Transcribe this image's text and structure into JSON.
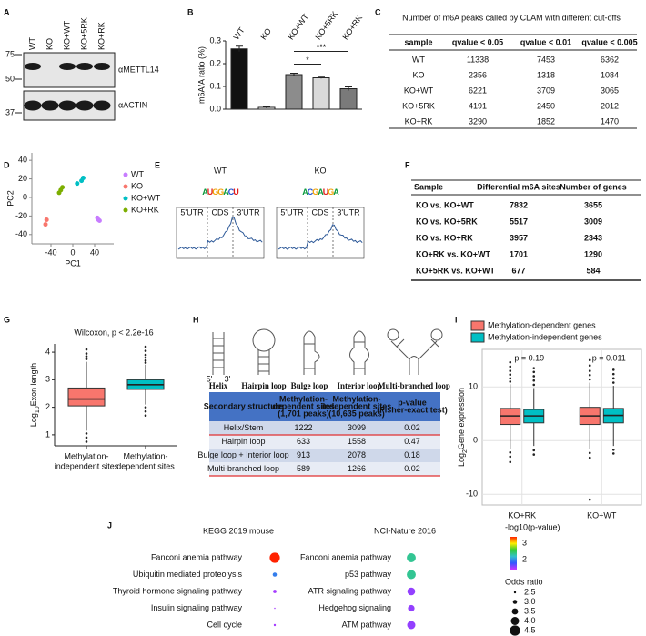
{
  "panel_letters": [
    "A",
    "B",
    "C",
    "D",
    "E",
    "F",
    "G",
    "H",
    "I",
    "J"
  ],
  "blot": {
    "lanes": [
      "WT",
      "KO",
      "KO+WT",
      "KO+5RK",
      "KO+RK"
    ],
    "markers": [
      75,
      50,
      37
    ],
    "antibodies": [
      "αMETTL14",
      "αACTIN"
    ]
  },
  "chart_data": [
    {
      "type": "bar",
      "ylabel": "m6A/A ratio (%)",
      "categories": [
        "WT",
        "KO",
        "KO+WT",
        "KO+5RK",
        "KO+RK"
      ],
      "values": [
        0.265,
        0.008,
        0.152,
        0.138,
        0.09
      ],
      "errors": [
        0.012,
        0.004,
        0.006,
        0.003,
        0.008
      ],
      "colors": [
        "#111111",
        "#ffffff",
        "#8c8c8c",
        "#d9d9d9",
        "#7a7a7a"
      ],
      "ylim": [
        0,
        0.3
      ],
      "yticks": [
        {
          "value": 0,
          "label": "0.0"
        },
        {
          "value": 0.1,
          "label": "0.1"
        },
        {
          "value": 0.2,
          "label": "0.2"
        },
        {
          "value": 0.3,
          "label": "0.3"
        }
      ],
      "significance": [
        {
          "pair": [
            "KO+WT",
            "KO+5RK"
          ],
          "label": "*"
        },
        {
          "pair": [
            "KO+WT",
            "KO+RK"
          ],
          "label": "***"
        }
      ]
    },
    {
      "type": "scatter",
      "xlabel": "PC1",
      "ylabel": "PC2",
      "xlim": [
        -75,
        75
      ],
      "ylim": [
        -50,
        48
      ],
      "xticks": [
        -40,
        0,
        40
      ],
      "yticks": [
        -40,
        -20,
        0,
        20,
        40
      ],
      "series": [
        {
          "name": "WT",
          "color": "#c77cff",
          "x": [
            45,
            49,
            47
          ],
          "values": [
            -22,
            -25,
            -24
          ]
        },
        {
          "name": "KO",
          "color": "#f8766d",
          "x": [
            -50,
            -48
          ],
          "values": [
            -29,
            -24
          ]
        },
        {
          "name": "KO+WT",
          "color": "#00bfc4",
          "x": [
            8,
            16,
            19
          ],
          "values": [
            15,
            18,
            21
          ]
        },
        {
          "name": "KO+RK",
          "color": "#7cae00",
          "x": [
            -25,
            -22,
            -19
          ],
          "values": [
            5,
            8,
            11
          ]
        }
      ]
    },
    {
      "type": "box",
      "title": "Wilcoxon, p < 2.2e-16",
      "ylabel": {
        "base": "Log",
        "sub": "10",
        "text": "Exon length"
      },
      "categories": [
        [
          "Methylation-",
          "independent sites"
        ],
        [
          "Methylation-",
          "dependent sites"
        ]
      ],
      "colors": [
        "#f8766d",
        "#00bfc4"
      ],
      "ylim": [
        0.6,
        4.3
      ],
      "yticks": [
        1,
        2,
        3,
        4
      ],
      "boxes": [
        {
          "whisker_low": 1.15,
          "q1": 2.05,
          "median": 2.3,
          "q3": 2.7,
          "whisker_high": 3.65,
          "outliers": [
            0.75,
            0.9,
            1.05,
            3.75,
            3.85,
            3.95,
            4.1
          ]
        },
        {
          "whisker_low": 2.1,
          "q1": 2.65,
          "median": 2.82,
          "q3": 3.0,
          "whisker_high": 3.55,
          "outliers": [
            1.7,
            1.85,
            2.0,
            3.62,
            3.7,
            3.8,
            3.9,
            4.05,
            4.2
          ]
        }
      ]
    },
    {
      "type": "grouped_box",
      "ylabel": {
        "base": "Log",
        "sub": "2",
        "text": "Gene expression"
      },
      "categories": [
        "KO+RK",
        "KO+WT"
      ],
      "annotations": [
        "p = 0.19",
        "p = 0.011"
      ],
      "ylim": [
        -12,
        17
      ],
      "yticks": [
        -10,
        0,
        10
      ],
      "grid": true,
      "series": [
        {
          "name": "Methylation-dependent genes",
          "color": "#f8766d",
          "boxes": [
            {
              "whisker_low": -1.5,
              "q1": 3,
              "median": 4.6,
              "q3": 6,
              "whisker_high": 10.5,
              "outliers": [
                11,
                11.6,
                12.3,
                13,
                13.8,
                14.6,
                -2.2,
                -3,
                -4
              ]
            },
            {
              "whisker_low": -1.5,
              "q1": 3,
              "median": 4.6,
              "q3": 6.2,
              "whisker_high": 10.8,
              "outliers": [
                11.4,
                12.2,
                13,
                14,
                15,
                -2.3,
                -3.2,
                -11
              ]
            }
          ]
        },
        {
          "name": "Methylation-independent genes",
          "color": "#00bfc4",
          "boxes": [
            {
              "whisker_low": -1,
              "q1": 3.3,
              "median": 4.6,
              "q3": 5.8,
              "whisker_high": 9.8,
              "outliers": [
                10.4,
                11.2,
                12,
                12.8,
                13.5,
                -1.8,
                -2.6
              ]
            },
            {
              "whisker_low": -1,
              "q1": 3.3,
              "median": 4.7,
              "q3": 6,
              "whisker_high": 10.2,
              "outliers": [
                10.8,
                11.6,
                12.4,
                13.2,
                -1.7,
                -2.4
              ]
            }
          ]
        }
      ]
    },
    {
      "type": "dotplot",
      "color_title": "-log10(p-value)",
      "clim": [
        1.4,
        3.4
      ],
      "colormap": [
        "#cc33ff",
        "#3355ff",
        "#33c0cc",
        "#33cc33",
        "#ffee00",
        "#ff2200"
      ],
      "cticks": [
        2,
        3
      ],
      "size_title": "Odds ratio",
      "size_ticks": [
        2.5,
        {
          "value": 3,
          "label": "3.0"
        },
        3.5,
        {
          "value": 4,
          "label": "4.0"
        },
        4.5
      ],
      "panels": [
        {
          "title": "KEGG 2019 mouse",
          "terms": [
            "Fanconi anemia pathway",
            "Ubiquitin mediated proteolysis",
            "Thyroid hormone signaling pathway",
            "Insulin signaling pathway",
            "Cell cycle"
          ],
          "values": [
            3.4,
            1.95,
            1.5,
            1.5,
            1.5
          ],
          "sizes": [
            4.5,
            3.0,
            2.8,
            2.3,
            2.5
          ]
        },
        {
          "title": "NCI-Nature 2016",
          "terms": [
            "Fanconi anemia pathway",
            "p53 pathway",
            "ATR signaling pathway",
            "Hedgehog signaling",
            "ATM pathway"
          ],
          "values": [
            2.35,
            2.35,
            1.55,
            1.55,
            1.55
          ],
          "sizes": [
            4.2,
            4.2,
            3.9,
            3.6,
            4.0
          ]
        }
      ]
    }
  ],
  "peaks_table": {
    "title": "Number of m6A peaks called by CLAM with different cut-offs",
    "header": [
      "sample",
      "qvalue < 0.05",
      "qvalue < 0.01",
      "qvalue < 0.005"
    ],
    "rows": [
      [
        "WT",
        11338,
        7453,
        6362
      ],
      [
        "KO",
        2356,
        1318,
        1084
      ],
      [
        "KO+WT",
        6221,
        3709,
        3065
      ],
      [
        "KO+5RK",
        4191,
        2450,
        2012
      ],
      [
        "KO+RK",
        3290,
        1852,
        1470
      ]
    ]
  },
  "motifs": {
    "titles": [
      "WT",
      "KO"
    ],
    "sequences": [
      "AUGGACU",
      "ACGAUGA"
    ],
    "regions": [
      "5'UTR",
      "CDS",
      "3'UTR"
    ]
  },
  "diff_table": {
    "header": [
      "Sample",
      "Differential m6A sites",
      "Number of genes"
    ],
    "rows": [
      [
        "KO vs. KO+WT",
        7832,
        3655
      ],
      [
        "KO vs. KO+5RK",
        5517,
        3009
      ],
      [
        "KO vs. KO+RK",
        3957,
        2343
      ],
      [
        "KO+RK vs. KO+WT",
        1701,
        1290
      ],
      [
        "KO+5RK vs. KO+WT",
        677,
        584
      ]
    ],
    "highlight": "KO+RK vs. KO+WT",
    "highlight_color": "#e8141b"
  },
  "structures": {
    "names": [
      "Helix",
      "Hairpin loop",
      "Bulge loop",
      "Interior loop",
      "Multi-branched loop"
    ],
    "ends": [
      "5'",
      "3'"
    ],
    "table": {
      "header": [
        [
          "Secondary structure"
        ],
        [
          "Methylation-",
          "dependent sites",
          "(1,701 peaks)"
        ],
        [
          "Methylation-",
          "independent sites",
          "(10,635 peaks)"
        ],
        [
          "p-value",
          "(Fisher-exact test)"
        ]
      ],
      "rows": [
        [
          "Helix/Stem",
          1222,
          3099,
          0.02
        ],
        [
          "Hairpin loop",
          633,
          1558,
          0.47
        ],
        [
          "Bulge loop + Interior loop",
          913,
          2078,
          0.18
        ],
        [
          "Multi-branched loop",
          589,
          1266,
          0.02
        ]
      ]
    }
  }
}
